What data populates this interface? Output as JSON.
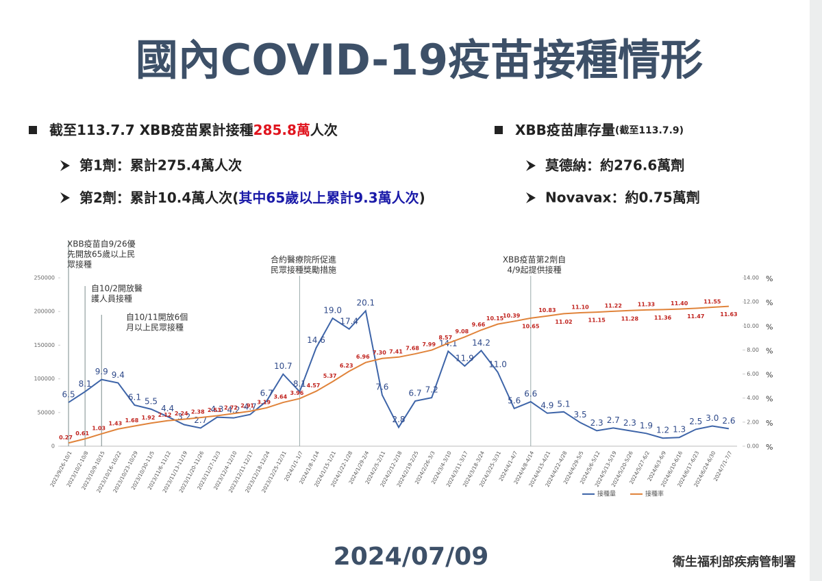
{
  "header": {
    "title": "國內COVID-19疫苗接種情形"
  },
  "bullets_left": {
    "main": [
      "截至113.7.7 XBB疫苗累計接種",
      "285.8萬",
      "人次"
    ],
    "items": [
      "第1劑：累計275.4萬人次",
      [
        "第2劑：累計10.4萬人次(",
        "其中65歲以上累計9.3萬人次",
        ")"
      ]
    ]
  },
  "bullets_right": {
    "main": [
      "XBB疫苗庫存量",
      "(截至113.7.9)"
    ],
    "items": [
      "莫德納：約276.6萬劑",
      "Novavax：約0.75萬劑"
    ]
  },
  "footer": {
    "date": "2024/07/09",
    "organization": "衛生福利部疾病管制署"
  },
  "chart_data": {
    "type": "line",
    "categories": [
      "2023/9/26-10/1",
      "2023/10/2-10/8",
      "2023/10/9-10/15",
      "2023/10/16-10/22",
      "2023/10/23-10/29",
      "2023/10/30-11/5",
      "2023/11/6-11/12",
      "2023/11/13-11/19",
      "2023/11/20-11/26",
      "2023/11/27-12/3",
      "2023/12/4-12/10",
      "2023/12/11-12/17",
      "2023/12/18-12/24",
      "2023/12/25-12/31",
      "2024/1/1-1/7",
      "2024/1/8-1/14",
      "2024/1/15-1/21",
      "2024/1/22-1/28",
      "2024/1/29-2/4",
      "2024/2/5-2/11",
      "2024/2/12-2/18",
      "2024/2/19-2/25",
      "2024/2/26-3/3",
      "2024/3/4-3/10",
      "2024/3/11-3/17",
      "2024/3/18-3/24",
      "2024/3/25-3/31",
      "2024/4/1-4/7",
      "2024/4/8-4/14",
      "2024/4/15-4/21",
      "2024/4/22-4/28",
      "2024/4/29-5/5",
      "2024/5/6-5/12",
      "2024/5/13-5/19",
      "2024/5/20-5/26",
      "2024/5/27-6/2",
      "2024/6/3-6/9",
      "2024/6/10-6/16",
      "2024/6/17-6/23",
      "2024/6/24-6/30",
      "2024/7/1-7/7"
    ],
    "series": [
      {
        "name": "接種量",
        "color": "#3d64a8",
        "values": [
          65000,
          81000,
          99000,
          94000,
          61000,
          55000,
          44000,
          32000,
          27000,
          43000,
          42000,
          47000,
          67000,
          107000,
          81000,
          146000,
          190000,
          174000,
          201000,
          76000,
          28000,
          67000,
          72000,
          141000,
          119000,
          142000,
          110000,
          56000,
          66000,
          49000,
          51000,
          35000,
          23000,
          27000,
          23000,
          19000,
          12000,
          13000,
          25000,
          30000,
          26000
        ],
        "value_labels": [
          "6.5",
          "8.1",
          "9.9",
          "9.4",
          "6.1",
          "5.5",
          "4.4",
          "3.2",
          "2.7",
          "4.3",
          "4.2",
          "4.7",
          "6.7",
          "10.7",
          "8.1",
          "14.6",
          "19.0",
          "17.4",
          "20.1",
          "7.6",
          "2.8",
          "6.7",
          "7.2",
          "14.1",
          "11.9",
          "14.2",
          "11.0",
          "5.6",
          "6.6",
          "4.9",
          "5.1",
          "3.5",
          "2.3",
          "2.7",
          "2.3",
          "1.9",
          "1.2",
          "1.3",
          "2.5",
          "3.0",
          "2.6"
        ]
      },
      {
        "name": "接種率",
        "color": "#e0833a",
        "axis": "y2",
        "values": [
          0.27,
          0.61,
          1.03,
          1.43,
          1.68,
          1.92,
          2.12,
          2.24,
          2.38,
          2.53,
          2.72,
          2.91,
          3.19,
          3.64,
          3.96,
          4.57,
          5.37,
          6.23,
          6.96,
          7.3,
          7.41,
          7.68,
          7.99,
          8.57,
          9.08,
          9.66,
          10.15,
          10.39,
          10.65,
          10.83,
          11.02,
          11.1,
          11.15,
          11.22,
          11.28,
          11.33,
          11.36,
          11.4,
          11.47,
          11.55,
          11.63
        ],
        "value_labels": [
          "0.27",
          "0.61",
          "1.03",
          "1.43",
          "1.68",
          "1.92",
          "2.12",
          "2.24",
          "2.38",
          "2.53",
          "2.72",
          "2.91",
          "3.19",
          "3.64",
          "3.96",
          "4.57",
          "5.37",
          "6.23",
          "6.96",
          "7.30",
          "7.41",
          "7.68",
          "7.99",
          "8.57",
          "9.08",
          "9.66",
          "10.15",
          "10.39",
          "10.65",
          "10.83",
          "11.02",
          "11.10",
          "11.15",
          "11.22",
          "11.28",
          "11.33",
          "11.36",
          "11.40",
          "11.47",
          "11.55",
          "11.63"
        ]
      }
    ],
    "ylim": [
      0,
      250000
    ],
    "yticks": [
      0,
      50000,
      100000,
      150000,
      200000,
      250000
    ],
    "y2lim": [
      0,
      14
    ],
    "y2ticks": [
      {
        "value": 0,
        "label": "0.00"
      },
      {
        "value": 2,
        "label": "2.00"
      },
      {
        "value": 4,
        "label": "4.00"
      },
      {
        "value": 6,
        "label": "6.00"
      },
      {
        "value": 8,
        "label": "8.00"
      },
      {
        "value": 10,
        "label": "10.00"
      },
      {
        "value": 12,
        "label": "12.00"
      },
      {
        "value": 14,
        "label": "14.00"
      }
    ],
    "y2_unit": "%",
    "legend": "bottom-right",
    "annotations": [
      [
        "XBB疫苗自9/26優",
        "先開放65歲以上民",
        "眾接種"
      ],
      [
        "自10/2開放醫",
        "護人員接種"
      ],
      [
        "自10/11開放6個",
        "月以上民眾接種"
      ],
      [
        "合約醫療院所促進",
        "民眾接種獎勵措施"
      ],
      [
        "XBB疫苗第2劑自",
        "4/9起提供接種"
      ]
    ]
  }
}
